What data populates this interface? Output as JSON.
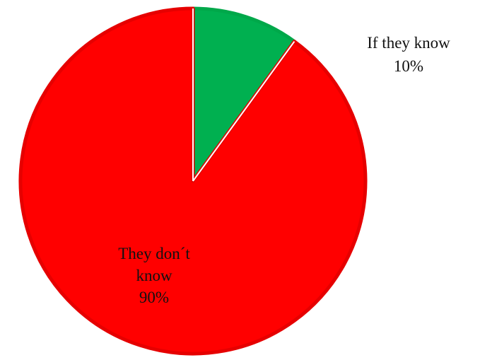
{
  "chart_data": {
    "type": "pie",
    "title": "",
    "slices": [
      {
        "name": "If they know",
        "value": 10,
        "label_lines": [
          "If they know",
          "10%"
        ],
        "color": "#00b050",
        "stroke": "#00a84a"
      },
      {
        "name": "They don´t know",
        "value": 90,
        "label_lines": [
          "They don´t",
          "know",
          "90%"
        ],
        "color": "#ff0000",
        "stroke": "#e60000"
      }
    ],
    "start_angle_deg": 0,
    "direction": "clockwise",
    "legend": "none"
  }
}
